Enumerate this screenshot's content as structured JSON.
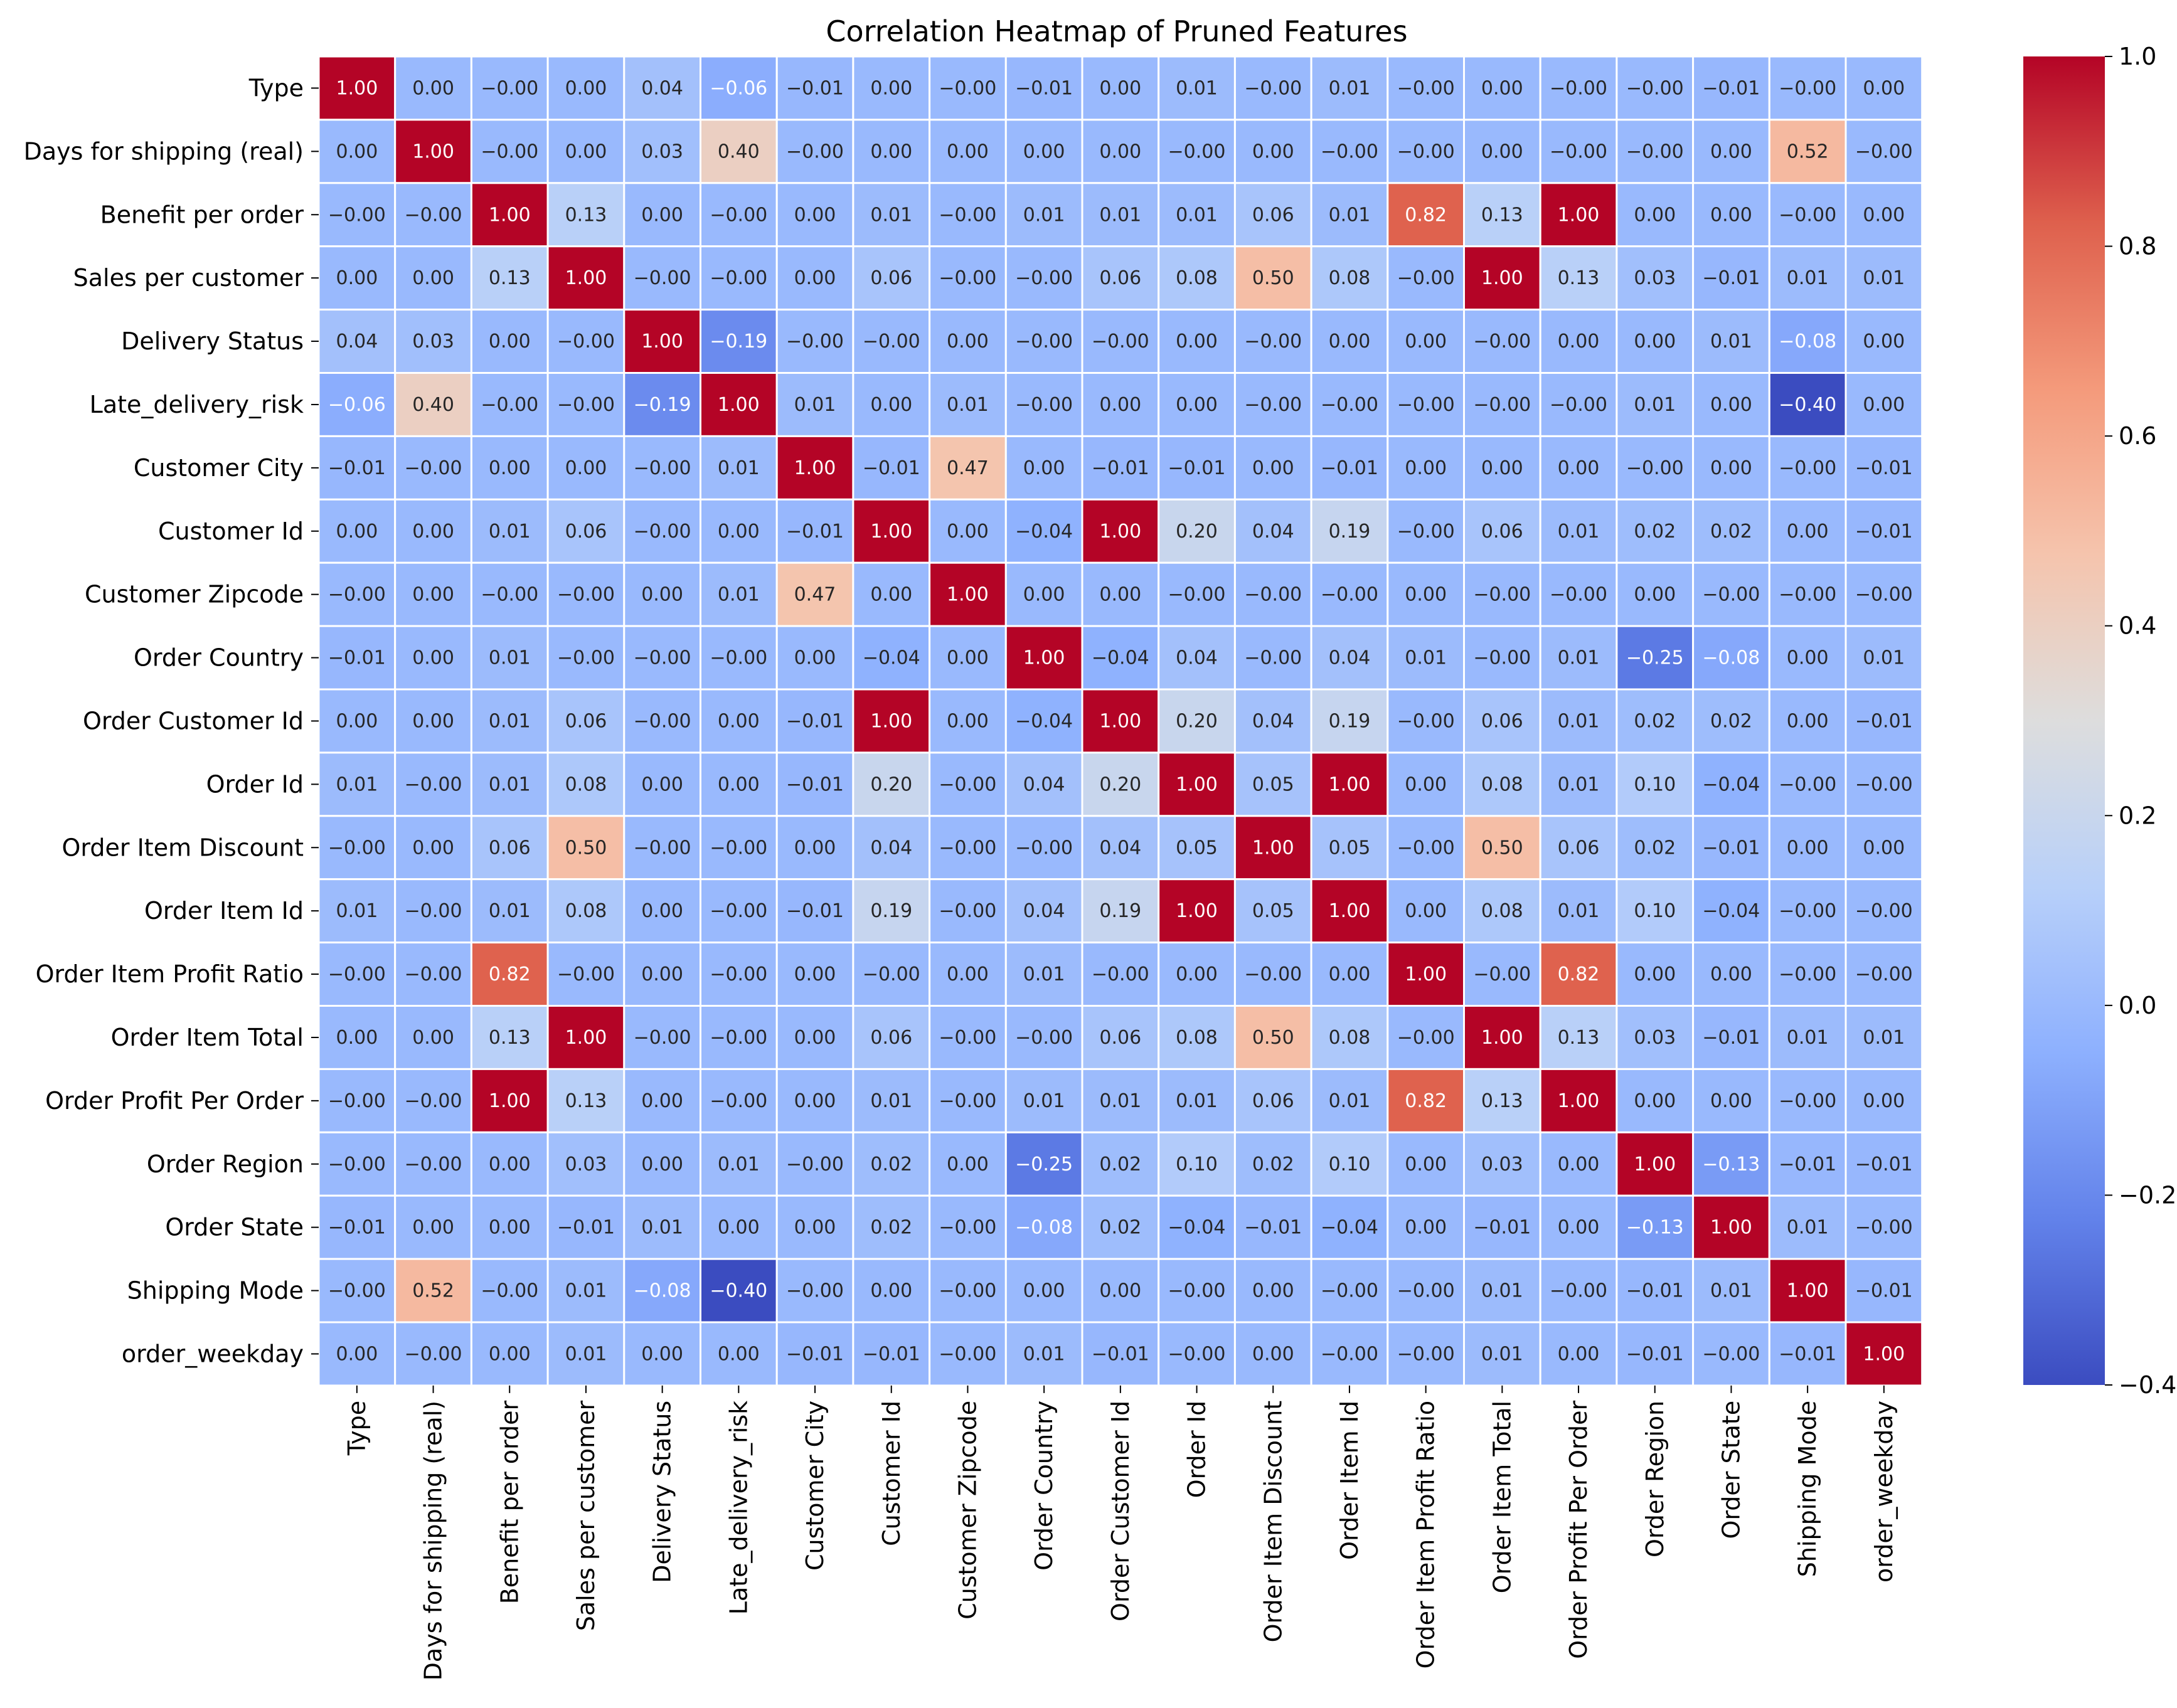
{
  "chart_data": {
    "type": "heatmap",
    "title": "Correlation Heatmap of Pruned Features",
    "labels": [
      "Type",
      "Days for shipping (real)",
      "Benefit per order",
      "Sales per customer",
      "Delivery Status",
      "Late_delivery_risk",
      "Customer City",
      "Customer Id",
      "Customer Zipcode",
      "Order Country",
      "Order Customer Id",
      "Order Id",
      "Order Item Discount",
      "Order Item Id",
      "Order Item Profit Ratio",
      "Order Item Total",
      "Order Profit Per Order",
      "Order Region",
      "Order State",
      "Shipping Mode",
      "order_weekday"
    ],
    "cell_text": [
      [
        "1.00",
        "0.00",
        "−0.00",
        "0.00",
        "0.04",
        "−0.06",
        "−0.01",
        "0.00",
        "−0.00",
        "−0.01",
        "0.00",
        "0.01",
        "−0.00",
        "0.01",
        "−0.00",
        "0.00",
        "−0.00",
        "−0.00",
        "−0.01",
        "−0.00",
        "0.00"
      ],
      [
        "0.00",
        "1.00",
        "−0.00",
        "0.00",
        "0.03",
        "0.40",
        "−0.00",
        "0.00",
        "0.00",
        "0.00",
        "0.00",
        "−0.00",
        "0.00",
        "−0.00",
        "−0.00",
        "0.00",
        "−0.00",
        "−0.00",
        "0.00",
        "0.52",
        "−0.00"
      ],
      [
        "−0.00",
        "−0.00",
        "1.00",
        "0.13",
        "0.00",
        "−0.00",
        "0.00",
        "0.01",
        "−0.00",
        "0.01",
        "0.01",
        "0.01",
        "0.06",
        "0.01",
        "0.82",
        "0.13",
        "1.00",
        "0.00",
        "0.00",
        "−0.00",
        "0.00"
      ],
      [
        "0.00",
        "0.00",
        "0.13",
        "1.00",
        "−0.00",
        "−0.00",
        "0.00",
        "0.06",
        "−0.00",
        "−0.00",
        "0.06",
        "0.08",
        "0.50",
        "0.08",
        "−0.00",
        "1.00",
        "0.13",
        "0.03",
        "−0.01",
        "0.01",
        "0.01"
      ],
      [
        "0.04",
        "0.03",
        "0.00",
        "−0.00",
        "1.00",
        "−0.19",
        "−0.00",
        "−0.00",
        "0.00",
        "−0.00",
        "−0.00",
        "0.00",
        "−0.00",
        "0.00",
        "0.00",
        "−0.00",
        "0.00",
        "0.00",
        "0.01",
        "−0.08",
        "0.00"
      ],
      [
        "−0.06",
        "0.40",
        "−0.00",
        "−0.00",
        "−0.19",
        "1.00",
        "0.01",
        "0.00",
        "0.01",
        "−0.00",
        "0.00",
        "0.00",
        "−0.00",
        "−0.00",
        "−0.00",
        "−0.00",
        "−0.00",
        "0.01",
        "0.00",
        "−0.40",
        "0.00"
      ],
      [
        "−0.01",
        "−0.00",
        "0.00",
        "0.00",
        "−0.00",
        "0.01",
        "1.00",
        "−0.01",
        "0.47",
        "0.00",
        "−0.01",
        "−0.01",
        "0.00",
        "−0.01",
        "0.00",
        "0.00",
        "0.00",
        "−0.00",
        "0.00",
        "−0.00",
        "−0.01"
      ],
      [
        "0.00",
        "0.00",
        "0.01",
        "0.06",
        "−0.00",
        "0.00",
        "−0.01",
        "1.00",
        "0.00",
        "−0.04",
        "1.00",
        "0.20",
        "0.04",
        "0.19",
        "−0.00",
        "0.06",
        "0.01",
        "0.02",
        "0.02",
        "0.00",
        "−0.01"
      ],
      [
        "−0.00",
        "0.00",
        "−0.00",
        "−0.00",
        "0.00",
        "0.01",
        "0.47",
        "0.00",
        "1.00",
        "0.00",
        "0.00",
        "−0.00",
        "−0.00",
        "−0.00",
        "0.00",
        "−0.00",
        "−0.00",
        "0.00",
        "−0.00",
        "−0.00",
        "−0.00"
      ],
      [
        "−0.01",
        "0.00",
        "0.01",
        "−0.00",
        "−0.00",
        "−0.00",
        "0.00",
        "−0.04",
        "0.00",
        "1.00",
        "−0.04",
        "0.04",
        "−0.00",
        "0.04",
        "0.01",
        "−0.00",
        "0.01",
        "−0.25",
        "−0.08",
        "0.00",
        "0.01"
      ],
      [
        "0.00",
        "0.00",
        "0.01",
        "0.06",
        "−0.00",
        "0.00",
        "−0.01",
        "1.00",
        "0.00",
        "−0.04",
        "1.00",
        "0.20",
        "0.04",
        "0.19",
        "−0.00",
        "0.06",
        "0.01",
        "0.02",
        "0.02",
        "0.00",
        "−0.01"
      ],
      [
        "0.01",
        "−0.00",
        "0.01",
        "0.08",
        "0.00",
        "0.00",
        "−0.01",
        "0.20",
        "−0.00",
        "0.04",
        "0.20",
        "1.00",
        "0.05",
        "1.00",
        "0.00",
        "0.08",
        "0.01",
        "0.10",
        "−0.04",
        "−0.00",
        "−0.00"
      ],
      [
        "−0.00",
        "0.00",
        "0.06",
        "0.50",
        "−0.00",
        "−0.00",
        "0.00",
        "0.04",
        "−0.00",
        "−0.00",
        "0.04",
        "0.05",
        "1.00",
        "0.05",
        "−0.00",
        "0.50",
        "0.06",
        "0.02",
        "−0.01",
        "0.00",
        "0.00"
      ],
      [
        "0.01",
        "−0.00",
        "0.01",
        "0.08",
        "0.00",
        "−0.00",
        "−0.01",
        "0.19",
        "−0.00",
        "0.04",
        "0.19",
        "1.00",
        "0.05",
        "1.00",
        "0.00",
        "0.08",
        "0.01",
        "0.10",
        "−0.04",
        "−0.00",
        "−0.00"
      ],
      [
        "−0.00",
        "−0.00",
        "0.82",
        "−0.00",
        "0.00",
        "−0.00",
        "0.00",
        "−0.00",
        "0.00",
        "0.01",
        "−0.00",
        "0.00",
        "−0.00",
        "0.00",
        "1.00",
        "−0.00",
        "0.82",
        "0.00",
        "0.00",
        "−0.00",
        "−0.00"
      ],
      [
        "0.00",
        "0.00",
        "0.13",
        "1.00",
        "−0.00",
        "−0.00",
        "0.00",
        "0.06",
        "−0.00",
        "−0.00",
        "0.06",
        "0.08",
        "0.50",
        "0.08",
        "−0.00",
        "1.00",
        "0.13",
        "0.03",
        "−0.01",
        "0.01",
        "0.01"
      ],
      [
        "−0.00",
        "−0.00",
        "1.00",
        "0.13",
        "0.00",
        "−0.00",
        "0.00",
        "0.01",
        "−0.00",
        "0.01",
        "0.01",
        "0.01",
        "0.06",
        "0.01",
        "0.82",
        "0.13",
        "1.00",
        "0.00",
        "0.00",
        "−0.00",
        "0.00"
      ],
      [
        "−0.00",
        "−0.00",
        "0.00",
        "0.03",
        "0.00",
        "0.01",
        "−0.00",
        "0.02",
        "0.00",
        "−0.25",
        "0.02",
        "0.10",
        "0.02",
        "0.10",
        "0.00",
        "0.03",
        "0.00",
        "1.00",
        "−0.13",
        "−0.01",
        "−0.01"
      ],
      [
        "−0.01",
        "0.00",
        "0.00",
        "−0.01",
        "0.01",
        "0.00",
        "0.00",
        "0.02",
        "−0.00",
        "−0.08",
        "0.02",
        "−0.04",
        "−0.01",
        "−0.04",
        "0.00",
        "−0.01",
        "0.00",
        "−0.13",
        "1.00",
        "0.01",
        "−0.00"
      ],
      [
        "−0.00",
        "0.52",
        "−0.00",
        "0.01",
        "−0.08",
        "−0.40",
        "−0.00",
        "0.00",
        "−0.00",
        "0.00",
        "0.00",
        "−0.00",
        "0.00",
        "−0.00",
        "−0.00",
        "0.01",
        "−0.00",
        "−0.01",
        "0.01",
        "1.00",
        "−0.01"
      ],
      [
        "0.00",
        "−0.00",
        "0.00",
        "0.01",
        "0.00",
        "0.00",
        "−0.01",
        "−0.01",
        "−0.00",
        "0.01",
        "−0.01",
        "−0.00",
        "0.00",
        "−0.00",
        "−0.00",
        "0.01",
        "0.00",
        "−0.01",
        "−0.00",
        "−0.01",
        "1.00"
      ]
    ],
    "colorbar": {
      "vmin": -0.4,
      "vmax": 1.0,
      "ticks": [
        -0.4,
        -0.2,
        0.0,
        0.2,
        0.4,
        0.6,
        0.8,
        1.0
      ],
      "tick_labels": [
        "−0.4",
        "−0.2",
        "0.0",
        "0.2",
        "0.4",
        "0.6",
        "0.8",
        "1.0"
      ],
      "colormap": "coolwarm"
    },
    "xlabel": "",
    "ylabel": "",
    "grid": false
  },
  "colors": {
    "cell_border": "#ffffff",
    "text_dark": "#262626",
    "text_light": "#ffffff",
    "axis": "#000000"
  }
}
